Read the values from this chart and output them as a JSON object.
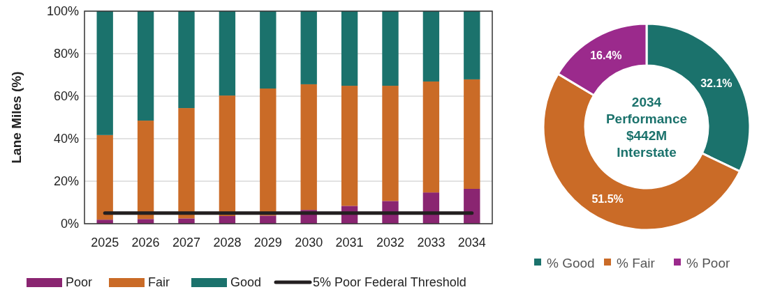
{
  "chart_data": [
    {
      "type": "bar",
      "stacked": true,
      "ylabel": "Lane Miles (%)",
      "categories": [
        "2025",
        "2026",
        "2027",
        "2028",
        "2029",
        "2030",
        "2031",
        "2032",
        "2033",
        "2034"
      ],
      "series": [
        {
          "name": "Poor",
          "color": "#8a2571",
          "values": [
            1.9,
            2.2,
            2.5,
            3.6,
            3.8,
            6.5,
            8.4,
            10.7,
            14.7,
            16.4
          ]
        },
        {
          "name": "Fair",
          "color": "#ca6b27",
          "values": [
            39.8,
            46.3,
            51.9,
            56.7,
            59.8,
            59.1,
            56.5,
            54.2,
            52.2,
            51.5
          ]
        },
        {
          "name": "Good",
          "color": "#1b726c",
          "values": [
            58.3,
            51.5,
            45.6,
            39.7,
            36.4,
            34.4,
            35.1,
            35.1,
            33.1,
            32.1
          ]
        }
      ],
      "ylim": [
        0,
        100
      ],
      "yticks": [
        {
          "value": 0,
          "label": "0%"
        },
        {
          "value": 20,
          "label": "20%"
        },
        {
          "value": 40,
          "label": "40%"
        },
        {
          "value": 60,
          "label": "60%"
        },
        {
          "value": 80,
          "label": "80%"
        },
        {
          "value": 100,
          "label": "100%"
        }
      ],
      "grid": "y",
      "ref_lines": [
        {
          "axis": "y",
          "value": 5,
          "label": "5% Poor Federal Threshold",
          "color": "#231f20"
        }
      ],
      "legend": "bottom"
    },
    {
      "type": "donut",
      "title": "2034\nPerformance\n$442M\nInterstate",
      "categories": [
        "% Good",
        "% Fair",
        "% Poor"
      ],
      "values": [
        32.1,
        51.5,
        16.4
      ],
      "colors": [
        "#1b726c",
        "#ca6b27",
        "#9b2a8c"
      ],
      "value_labels": [
        "32.1%",
        "51.5%",
        "16.4%"
      ],
      "legend": "bottom"
    }
  ]
}
